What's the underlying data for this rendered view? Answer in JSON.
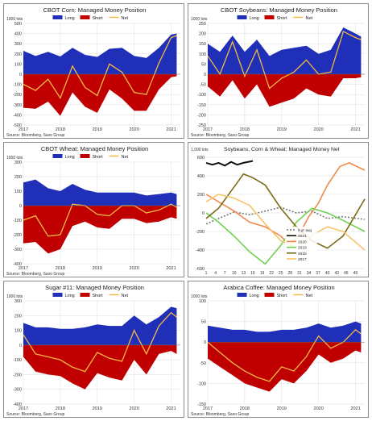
{
  "chart_data": [
    {
      "type": "area",
      "title": "CBOT Corn: Managed Money Position",
      "unit_label": "1000 lots",
      "legend": [
        "Long",
        "Short",
        "Net"
      ],
      "source": "Source: Bloomberg, Saxo Group",
      "x_ticks": [
        "2017",
        "2018",
        "2019",
        "2020",
        "2021"
      ],
      "ylim": [
        -500,
        500
      ],
      "y_ticks": [
        500,
        400,
        300,
        200,
        100,
        0,
        -100,
        -200,
        -300,
        -400,
        -500
      ],
      "x": [
        2017.0,
        2017.33,
        2017.67,
        2018.0,
        2018.33,
        2018.67,
        2019.0,
        2019.33,
        2019.67,
        2020.0,
        2020.33,
        2020.67,
        2021.0,
        2021.15
      ],
      "series": [
        {
          "name": "Long",
          "values": [
            230,
            180,
            220,
            175,
            260,
            190,
            170,
            250,
            260,
            180,
            160,
            260,
            390,
            400
          ]
        },
        {
          "name": "Short",
          "values": [
            -330,
            -340,
            -270,
            -410,
            -180,
            -320,
            -380,
            -150,
            -240,
            -360,
            -360,
            -150,
            -30,
            -20
          ]
        },
        {
          "name": "Net",
          "values": [
            -100,
            -160,
            -50,
            -235,
            80,
            -130,
            -210,
            100,
            20,
            -180,
            -200,
            110,
            360,
            380
          ]
        }
      ]
    },
    {
      "type": "area",
      "title": "CBOT Soybeans: Managed Money Position",
      "unit_label": "1000 lots",
      "legend": [
        "Long",
        "Short",
        "Net"
      ],
      "source": "Source: Bloomberg, Saxo Group",
      "x_ticks": [
        "2017",
        "2018",
        "2019",
        "2020",
        "2021"
      ],
      "ylim": [
        -250,
        250
      ],
      "y_ticks": [
        250,
        200,
        150,
        100,
        50,
        0,
        -50,
        -100,
        -150,
        -200,
        -250
      ],
      "x": [
        2017.0,
        2017.33,
        2017.67,
        2018.0,
        2018.33,
        2018.67,
        2019.0,
        2019.33,
        2019.67,
        2020.0,
        2020.33,
        2020.67,
        2021.0,
        2021.15
      ],
      "series": [
        {
          "name": "Long",
          "values": [
            150,
            110,
            190,
            110,
            170,
            90,
            120,
            130,
            140,
            100,
            120,
            230,
            200,
            185
          ]
        },
        {
          "name": "Short",
          "values": [
            -60,
            -110,
            -30,
            -120,
            -50,
            -160,
            -140,
            -120,
            -70,
            -100,
            -110,
            -20,
            -20,
            -15
          ]
        },
        {
          "name": "Net",
          "values": [
            90,
            0,
            160,
            -10,
            120,
            -70,
            -20,
            10,
            70,
            0,
            10,
            210,
            180,
            170
          ]
        }
      ]
    },
    {
      "type": "area",
      "title": "CBOT Wheat: Managed Money Position",
      "unit_label": "1000 lots",
      "legend": [
        "Long",
        "Short",
        "Net"
      ],
      "source": "Source: Bloomberg, Saxo Group",
      "x_ticks": [
        "2017",
        "2018",
        "2019",
        "2020",
        "2021"
      ],
      "ylim": [
        -400,
        300
      ],
      "y_ticks": [
        300,
        200,
        100,
        0,
        -100,
        -200,
        -300,
        -400
      ],
      "x": [
        2017.0,
        2017.33,
        2017.67,
        2018.0,
        2018.33,
        2018.67,
        2019.0,
        2019.33,
        2019.67,
        2020.0,
        2020.33,
        2020.67,
        2021.0,
        2021.15
      ],
      "series": [
        {
          "name": "Long",
          "values": [
            160,
            180,
            120,
            100,
            150,
            110,
            90,
            90,
            90,
            90,
            70,
            80,
            90,
            80
          ]
        },
        {
          "name": "Short",
          "values": [
            -260,
            -250,
            -330,
            -300,
            -140,
            -110,
            -150,
            -160,
            -90,
            -90,
            -120,
            -110,
            -80,
            -90
          ]
        },
        {
          "name": "Net",
          "values": [
            -100,
            -70,
            -210,
            -200,
            10,
            0,
            -60,
            -70,
            0,
            0,
            -50,
            -30,
            10,
            -10
          ]
        }
      ]
    },
    {
      "type": "line",
      "title": "Soybeans, Corn & Wheat; Managed Money Net",
      "unit_label": "1,000 lots",
      "ylim": [
        -600,
        600
      ],
      "y_ticks": [
        600,
        400,
        200,
        0,
        -200,
        -400,
        -600
      ],
      "x_ticks": [
        1,
        4,
        7,
        10,
        13,
        16,
        19,
        22,
        25,
        28,
        31,
        34,
        37,
        40,
        43,
        46,
        49
      ],
      "xlim": [
        1,
        52
      ],
      "series": [
        {
          "name": "5 yr avg",
          "x": [
            1,
            5,
            10,
            15,
            20,
            25,
            30,
            35,
            40,
            45,
            52
          ],
          "values": [
            -120,
            -60,
            10,
            -20,
            20,
            60,
            0,
            20,
            -60,
            -40,
            -70
          ]
        },
        {
          "name": "2021",
          "x": [
            1,
            3,
            5,
            7,
            9,
            11,
            13,
            16
          ],
          "values": [
            540,
            520,
            540,
            510,
            550,
            520,
            540,
            560
          ]
        },
        {
          "name": "2020",
          "x": [
            1,
            5,
            10,
            15,
            20,
            25,
            28,
            31,
            34,
            37,
            40,
            44,
            47,
            52
          ],
          "values": [
            200,
            120,
            20,
            -100,
            -150,
            -250,
            -350,
            -230,
            -40,
            100,
            300,
            500,
            540,
            460
          ]
        },
        {
          "name": "2019",
          "x": [
            1,
            5,
            10,
            15,
            20,
            25,
            30,
            35,
            40,
            45,
            52
          ],
          "values": [
            0,
            -100,
            -250,
            -420,
            -550,
            -350,
            -100,
            50,
            0,
            -80,
            -200
          ]
        },
        {
          "name": "2018",
          "x": [
            1,
            5,
            10,
            13,
            16,
            20,
            25,
            30,
            35,
            40,
            45,
            52
          ],
          "values": [
            -60,
            50,
            280,
            420,
            380,
            300,
            50,
            -150,
            -300,
            -380,
            -250,
            150
          ]
        },
        {
          "name": "2017",
          "x": [
            1,
            5,
            10,
            15,
            20,
            25,
            30,
            35,
            40,
            45,
            52
          ],
          "values": [
            120,
            200,
            160,
            80,
            -120,
            -300,
            -380,
            -240,
            -150,
            -200,
            -400
          ]
        }
      ]
    },
    {
      "type": "area",
      "title": "Sugar #11: Managed Money Position",
      "unit_label": "1000 lots",
      "legend": [
        "Long",
        "Short",
        "Net"
      ],
      "source": "Source: Bloomberg, Saxo Group",
      "x_ticks": [
        "2017",
        "2018",
        "2019",
        "2020",
        "2021"
      ],
      "ylim": [
        -400,
        300
      ],
      "y_ticks": [
        300,
        200,
        100,
        0,
        -100,
        -200,
        -300,
        -400
      ],
      "x": [
        2017.0,
        2017.33,
        2017.67,
        2018.0,
        2018.33,
        2018.67,
        2019.0,
        2019.33,
        2019.67,
        2020.0,
        2020.33,
        2020.67,
        2021.0,
        2021.15
      ],
      "series": [
        {
          "name": "Long",
          "values": [
            150,
            120,
            120,
            110,
            110,
            120,
            140,
            130,
            130,
            200,
            140,
            190,
            260,
            250
          ]
        },
        {
          "name": "Short",
          "values": [
            -80,
            -180,
            -200,
            -210,
            -260,
            -300,
            -190,
            -220,
            -240,
            -100,
            -200,
            -60,
            -40,
            -60
          ]
        },
        {
          "name": "Net",
          "values": [
            70,
            -60,
            -80,
            -100,
            -150,
            -180,
            -50,
            -90,
            -110,
            100,
            -60,
            130,
            220,
            190
          ]
        }
      ]
    },
    {
      "type": "area",
      "title": "Arabica Coffee: Managed Money Position",
      "unit_label": "1000 lots",
      "legend": [
        "Long",
        "Short",
        "Net"
      ],
      "source": "Source: Bloomberg, Saxo Group",
      "x_ticks": [
        "2017",
        "2018",
        "2019",
        "2020",
        "2021"
      ],
      "ylim": [
        -150,
        100
      ],
      "y_ticks": [
        100,
        50,
        0,
        -50,
        -100,
        -150
      ],
      "x": [
        2017.0,
        2017.33,
        2017.67,
        2018.0,
        2018.33,
        2018.67,
        2019.0,
        2019.33,
        2019.67,
        2020.0,
        2020.33,
        2020.67,
        2021.0,
        2021.15
      ],
      "series": [
        {
          "name": "Long",
          "values": [
            40,
            35,
            30,
            30,
            25,
            25,
            30,
            30,
            35,
            45,
            35,
            40,
            50,
            45
          ]
        },
        {
          "name": "Short",
          "values": [
            -40,
            -60,
            -80,
            -100,
            -110,
            -120,
            -90,
            -100,
            -70,
            -30,
            -50,
            -40,
            -20,
            -25
          ]
        },
        {
          "name": "Net",
          "values": [
            0,
            -25,
            -50,
            -70,
            -85,
            -95,
            -60,
            -70,
            -35,
            15,
            -15,
            0,
            30,
            20
          ]
        }
      ]
    }
  ],
  "colors": {
    "long": "#1f2fb8",
    "short": "#c00000",
    "net": "#f4b942",
    "grid": "#dcdcdc",
    "axis_text": "#333333",
    "line_2021": "#111111",
    "line_2020": "#f08a4b",
    "line_2019": "#70d050",
    "line_2018": "#7a6a14",
    "line_2017": "#f7c46c",
    "line_avg": "#777777"
  }
}
